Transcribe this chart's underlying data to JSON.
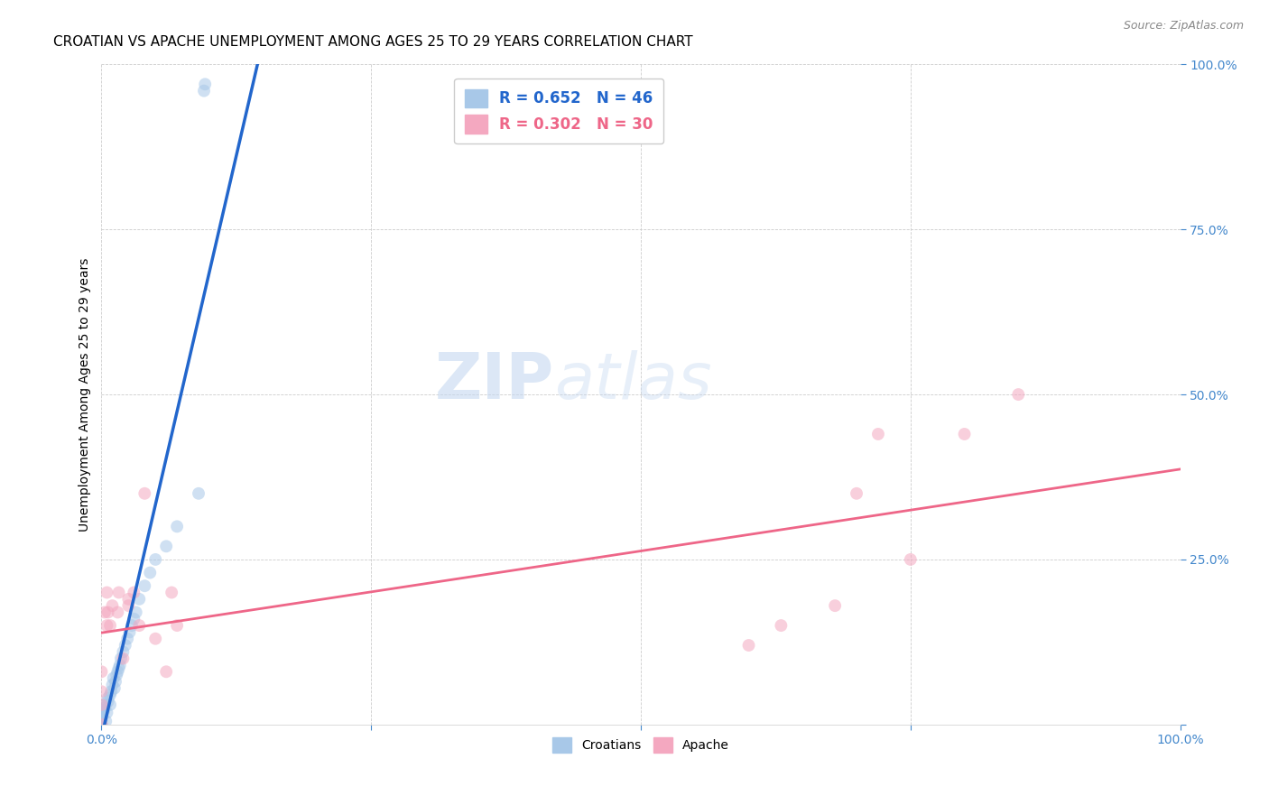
{
  "title": "CROATIAN VS APACHE UNEMPLOYMENT AMONG AGES 25 TO 29 YEARS CORRELATION CHART",
  "source": "Source: ZipAtlas.com",
  "ylabel": "Unemployment Among Ages 25 to 29 years",
  "xlim": [
    0,
    1.0
  ],
  "ylim": [
    0,
    1.0
  ],
  "xticks": [
    0.0,
    0.25,
    0.5,
    0.75,
    1.0
  ],
  "yticks": [
    0.0,
    0.25,
    0.5,
    0.75,
    1.0
  ],
  "xticklabels": [
    "0.0%",
    "",
    "",
    "",
    "100.0%"
  ],
  "yticklabels": [
    "",
    "25.0%",
    "50.0%",
    "75.0%",
    "100.0%"
  ],
  "croatian_color": "#a8c8e8",
  "apache_color": "#f4a8c0",
  "trendline_croatian_color": "#2266cc",
  "trendline_apache_color": "#ee6688",
  "legend_r_croatian": "R = 0.652",
  "legend_n_croatian": "N = 46",
  "legend_r_apache": "R = 0.302",
  "legend_n_apache": "N = 30",
  "croatian_x": [
    0.0,
    0.0,
    0.0,
    0.0,
    0.0,
    0.0,
    0.0,
    0.0,
    0.0,
    0.0,
    0.002,
    0.002,
    0.003,
    0.004,
    0.004,
    0.005,
    0.006,
    0.006,
    0.008,
    0.008,
    0.009,
    0.01,
    0.011,
    0.012,
    0.013,
    0.014,
    0.015,
    0.016,
    0.017,
    0.018,
    0.02,
    0.022,
    0.024,
    0.026,
    0.028,
    0.03,
    0.032,
    0.035,
    0.04,
    0.045,
    0.05,
    0.06,
    0.07,
    0.09,
    0.095,
    0.096
  ],
  "croatian_y": [
    0.0,
    0.0,
    0.0,
    0.0,
    0.005,
    0.008,
    0.01,
    0.012,
    0.015,
    0.018,
    0.02,
    0.022,
    0.025,
    0.005,
    0.03,
    0.018,
    0.035,
    0.04,
    0.045,
    0.03,
    0.05,
    0.06,
    0.07,
    0.055,
    0.065,
    0.075,
    0.08,
    0.085,
    0.09,
    0.1,
    0.11,
    0.12,
    0.13,
    0.14,
    0.15,
    0.16,
    0.17,
    0.19,
    0.21,
    0.23,
    0.25,
    0.27,
    0.3,
    0.35,
    0.96,
    0.97
  ],
  "apache_x": [
    0.0,
    0.0,
    0.0,
    0.0,
    0.003,
    0.005,
    0.005,
    0.006,
    0.008,
    0.01,
    0.015,
    0.016,
    0.02,
    0.025,
    0.025,
    0.03,
    0.035,
    0.04,
    0.05,
    0.06,
    0.065,
    0.07,
    0.6,
    0.63,
    0.68,
    0.7,
    0.72,
    0.75,
    0.8,
    0.85
  ],
  "apache_y": [
    0.0,
    0.03,
    0.05,
    0.08,
    0.17,
    0.15,
    0.2,
    0.17,
    0.15,
    0.18,
    0.17,
    0.2,
    0.1,
    0.19,
    0.18,
    0.2,
    0.15,
    0.35,
    0.13,
    0.08,
    0.2,
    0.15,
    0.12,
    0.15,
    0.18,
    0.35,
    0.44,
    0.25,
    0.44,
    0.5
  ],
  "title_fontsize": 11,
  "axis_label_fontsize": 10,
  "tick_fontsize": 10,
  "legend_fontsize": 12,
  "source_fontsize": 9,
  "marker_size": 10,
  "marker_alpha": 0.55
}
